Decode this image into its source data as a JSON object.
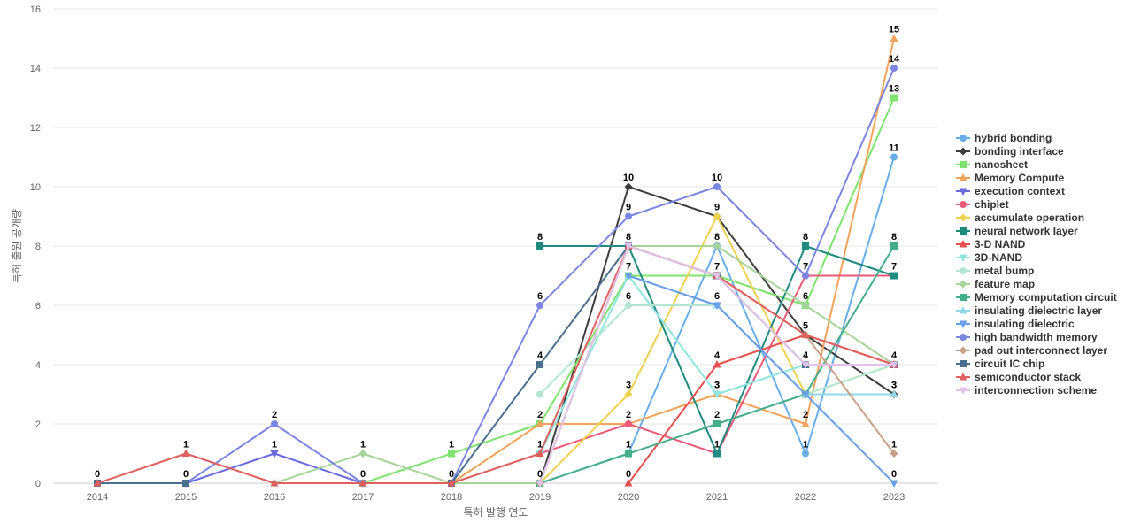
{
  "chart_data": {
    "type": "line",
    "title": "",
    "xlabel": "특허 발행 연도",
    "ylabel": "특허 출원 공개량",
    "x": [
      2014,
      2015,
      2016,
      2017,
      2018,
      2019,
      2020,
      2021,
      2022,
      2023
    ],
    "ylim": [
      0,
      16
    ],
    "yticks": [
      0,
      2,
      4,
      6,
      8,
      10,
      12,
      14,
      16
    ],
    "grid": true,
    "legend_position": "right",
    "series": [
      {
        "name": "hybrid bonding",
        "color": "#6aaee8",
        "marker": "circle",
        "values": [
          null,
          null,
          null,
          null,
          null,
          0,
          1,
          8,
          1,
          11
        ],
        "labels": [
          null,
          null,
          null,
          null,
          null,
          null,
          1,
          8,
          1,
          11
        ]
      },
      {
        "name": "bonding interface",
        "color": "#3d3d3d",
        "marker": "diamond",
        "values": [
          null,
          null,
          null,
          null,
          null,
          0,
          10,
          9,
          5,
          3
        ],
        "labels": [
          null,
          null,
          null,
          null,
          null,
          0,
          10,
          9,
          5,
          3
        ]
      },
      {
        "name": "nanosheet",
        "color": "#7fe36f",
        "marker": "square",
        "values": [
          null,
          null,
          null,
          0,
          1,
          2,
          7,
          7,
          6,
          13
        ],
        "labels": [
          null,
          null,
          null,
          null,
          1,
          null,
          null,
          null,
          6,
          13
        ]
      },
      {
        "name": "Memory Compute",
        "color": "#f3a35a",
        "marker": "triangle-up",
        "values": [
          null,
          null,
          null,
          null,
          0,
          2,
          2,
          3,
          2,
          15
        ],
        "labels": [
          null,
          null,
          null,
          null,
          null,
          2,
          null,
          3,
          2,
          15
        ]
      },
      {
        "name": "execution context",
        "color": "#6a6ae0",
        "marker": "triangle-down",
        "values": [
          null,
          0,
          1,
          0,
          null,
          null,
          null,
          null,
          null,
          null
        ],
        "labels": [
          null,
          null,
          1,
          null,
          null,
          null,
          null,
          null,
          null,
          null
        ]
      },
      {
        "name": "chiplet",
        "color": "#ea5a7a",
        "marker": "circle",
        "values": [
          null,
          null,
          null,
          null,
          null,
          1,
          2,
          1,
          7,
          7
        ],
        "labels": [
          null,
          null,
          null,
          null,
          null,
          null,
          2,
          null,
          7,
          null
        ]
      },
      {
        "name": "accumulate operation",
        "color": "#ecd24e",
        "marker": "diamond",
        "values": [
          null,
          null,
          null,
          null,
          null,
          0,
          3,
          9,
          3,
          4
        ],
        "labels": [
          null,
          null,
          null,
          null,
          null,
          null,
          3,
          null,
          null,
          null
        ]
      },
      {
        "name": "neural network layer",
        "color": "#1e8a80",
        "marker": "square",
        "values": [
          null,
          null,
          null,
          null,
          null,
          8,
          8,
          1,
          8,
          7
        ],
        "labels": [
          null,
          null,
          null,
          null,
          null,
          8,
          null,
          1,
          8,
          7
        ]
      },
      {
        "name": "3-D NAND",
        "color": "#e45050",
        "marker": "triangle-up",
        "values": [
          null,
          null,
          null,
          null,
          null,
          null,
          0,
          4,
          5,
          4
        ],
        "labels": [
          null,
          null,
          null,
          null,
          null,
          null,
          0,
          4,
          null,
          null
        ]
      },
      {
        "name": "3D-NAND",
        "color": "#8fe6e0",
        "marker": "triangle-down",
        "values": [
          null,
          null,
          null,
          null,
          null,
          1,
          7,
          3,
          4,
          4
        ],
        "labels": [
          null,
          null,
          null,
          null,
          null,
          1,
          7,
          3,
          null,
          null
        ]
      },
      {
        "name": "metal bump",
        "color": "#b3e6d2",
        "marker": "circle",
        "values": [
          null,
          null,
          null,
          null,
          null,
          3,
          6,
          6,
          3,
          4
        ],
        "labels": [
          null,
          null,
          null,
          null,
          null,
          null,
          6,
          6,
          null,
          null
        ]
      },
      {
        "name": "feature map",
        "color": "#a6d49a",
        "marker": "diamond",
        "values": [
          null,
          null,
          0,
          1,
          0,
          0,
          8,
          8,
          6,
          4
        ],
        "labels": [
          null,
          null,
          null,
          1,
          null,
          null,
          null,
          null,
          null,
          null
        ]
      },
      {
        "name": "Memory computation circuit",
        "color": "#44ad8a",
        "marker": "square",
        "values": [
          null,
          null,
          null,
          null,
          null,
          0,
          1,
          2,
          3,
          8
        ],
        "labels": [
          null,
          null,
          null,
          null,
          null,
          null,
          1,
          2,
          null,
          8
        ]
      },
      {
        "name": "insulating dielectric layer",
        "color": "#8ed8e8",
        "marker": "triangle-up",
        "values": [
          null,
          null,
          null,
          null,
          null,
          null,
          7,
          6,
          3,
          3
        ],
        "labels": [
          null,
          null,
          null,
          null,
          null,
          null,
          null,
          null,
          null,
          3
        ]
      },
      {
        "name": "insulating dielectric",
        "color": "#6a9ee8",
        "marker": "triangle-down",
        "values": [
          null,
          null,
          null,
          null,
          null,
          null,
          7,
          6,
          3,
          0
        ],
        "labels": [
          null,
          null,
          null,
          null,
          null,
          null,
          null,
          null,
          null,
          0
        ]
      },
      {
        "name": "high bandwidth memory",
        "color": "#7a86e0",
        "marker": "circle",
        "values": [
          0,
          0,
          2,
          0,
          0,
          6,
          9,
          10,
          7,
          14
        ],
        "labels": [
          0,
          0,
          2,
          0,
          null,
          6,
          9,
          10,
          7,
          14
        ]
      },
      {
        "name": "pad out interconnect layer",
        "color": "#c8a088",
        "marker": "diamond",
        "values": [
          null,
          null,
          null,
          null,
          null,
          0,
          8,
          7,
          5,
          1
        ],
        "labels": [
          null,
          null,
          null,
          null,
          null,
          null,
          null,
          null,
          null,
          1
        ]
      },
      {
        "name": "circuit IC chip",
        "color": "#4a6e8e",
        "marker": "square",
        "values": [
          0,
          0,
          null,
          null,
          0,
          4,
          8,
          7,
          4,
          4
        ],
        "labels": [
          null,
          null,
          null,
          null,
          null,
          4,
          8,
          7,
          4,
          null
        ]
      },
      {
        "name": "semiconductor stack",
        "color": "#e06060",
        "marker": "triangle-up",
        "values": [
          0,
          1,
          0,
          0,
          0,
          1,
          8,
          7,
          5,
          4
        ],
        "labels": [
          null,
          1,
          null,
          null,
          0,
          null,
          null,
          null,
          null,
          4
        ]
      },
      {
        "name": "interconnection scheme",
        "color": "#e2c2e8",
        "marker": "triangle-down",
        "values": [
          null,
          null,
          null,
          null,
          null,
          0,
          8,
          7,
          4,
          4
        ],
        "labels": [
          null,
          null,
          null,
          null,
          null,
          null,
          null,
          null,
          null,
          null
        ]
      }
    ]
  }
}
